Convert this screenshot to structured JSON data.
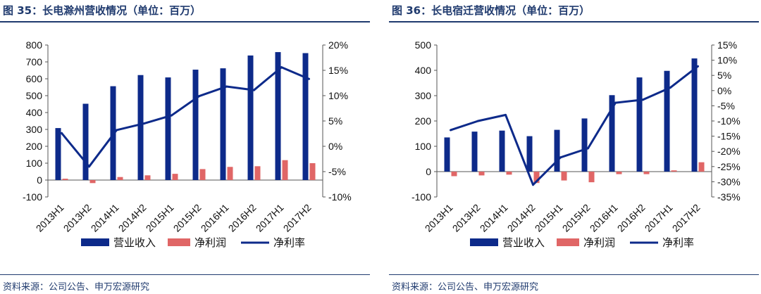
{
  "figures": [
    {
      "title": "图 35：长电滁州营收情况（单位：百万）",
      "source": "资料来源：公司公告、申万宏源研究",
      "chart_data": {
        "type": "bar+line",
        "title": "图 35：长电滁州营收情况（单位：百万）",
        "categories": [
          "2013H1",
          "2013H2",
          "2014H1",
          "2014H2",
          "2015H1",
          "2015H2",
          "2016H1",
          "2016H2",
          "2017H1",
          "2017H2"
        ],
        "left_axis": {
          "min": -100,
          "max": 800,
          "step": 100,
          "ticks": [
            "-100",
            "0",
            "100",
            "200",
            "300",
            "400",
            "500",
            "600",
            "700",
            "800"
          ]
        },
        "right_axis": {
          "min": -10,
          "max": 20,
          "step": 5,
          "ticks": [
            "-10%",
            "-5%",
            "0%",
            "5%",
            "10%",
            "15%",
            "20%"
          ]
        },
        "series": [
          {
            "name": "营业收入",
            "kind": "bar",
            "axis": "left",
            "color": "#0d2a8a",
            "values": [
              308,
              452,
              556,
              622,
              608,
              654,
              662,
              738,
              758,
              752
            ]
          },
          {
            "name": "净利润",
            "kind": "bar",
            "axis": "left",
            "color": "#e06666",
            "values": [
              8,
              -18,
              18,
              28,
              37,
              65,
              78,
              82,
              118,
              100
            ]
          },
          {
            "name": "净利率",
            "kind": "line",
            "axis": "right",
            "color": "#0d2a8a",
            "values": [
              2.6,
              -4.0,
              3.2,
              4.5,
              6.1,
              9.9,
              11.8,
              11.1,
              15.6,
              13.3
            ]
          }
        ]
      }
    },
    {
      "title": "图 36：长电宿迁营收情况（单位：百万）",
      "source": "资料来源：公司公告、申万宏源研究",
      "chart_data": {
        "type": "bar+line",
        "title": "图 36：长电宿迁营收情况（单位：百万）",
        "categories": [
          "2013H1",
          "2013H2",
          "2014H1",
          "2014H2",
          "2015H1",
          "2015H2",
          "2016H1",
          "2016H2",
          "2017H1",
          "2017H2"
        ],
        "left_axis": {
          "min": -100,
          "max": 500,
          "step": 100,
          "ticks": [
            "-100",
            "0",
            "100",
            "200",
            "300",
            "400",
            "500"
          ]
        },
        "right_axis": {
          "min": -35,
          "max": 15,
          "step": 5,
          "ticks": [
            "-35%",
            "-30%",
            "-25%",
            "-20%",
            "-15%",
            "-10%",
            "-5%",
            "0%",
            "5%",
            "10%",
            "15%"
          ]
        },
        "series": [
          {
            "name": "营业收入",
            "kind": "bar",
            "axis": "left",
            "color": "#0d2a8a",
            "values": [
              135,
              158,
              162,
              140,
              165,
              210,
              302,
              372,
              398,
              447
            ]
          },
          {
            "name": "净利润",
            "kind": "bar",
            "axis": "left",
            "color": "#e06666",
            "values": [
              -18,
              -15,
              -12,
              -45,
              -35,
              -42,
              -10,
              -10,
              5,
              37
            ]
          },
          {
            "name": "净利率",
            "kind": "line",
            "axis": "right",
            "color": "#0d2a8a",
            "values": [
              -13,
              -10,
              -8,
              -31,
              -22,
              -19,
              -4,
              -3,
              1,
              8
            ]
          }
        ]
      }
    }
  ]
}
